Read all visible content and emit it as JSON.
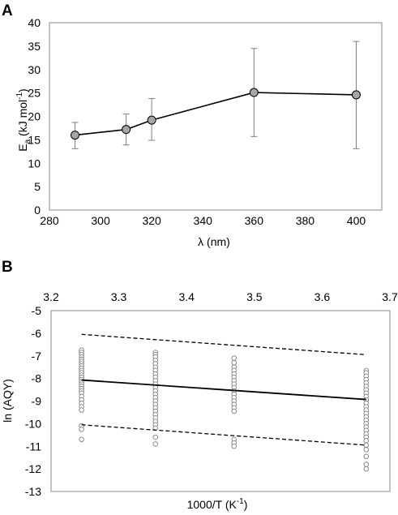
{
  "chart_data": [
    {
      "panel": "A",
      "type": "line",
      "x": [
        290,
        310,
        320,
        360,
        400
      ],
      "y": [
        16.0,
        17.2,
        19.2,
        25.1,
        24.6
      ],
      "y_err_upper": [
        18.7,
        20.5,
        23.8,
        34.5,
        36.0
      ],
      "y_err_lower": [
        13.1,
        13.9,
        14.9,
        15.7,
        13.1
      ],
      "xlabel": "λ  (nm)",
      "ylabel": {
        "main": "E",
        "sub": "a",
        "rest": " (kJ mol",
        "sup": "-1",
        "close": ")"
      },
      "xlim": [
        280,
        410
      ],
      "ylim": [
        0,
        40
      ],
      "xticks": [
        280,
        300,
        320,
        340,
        360,
        380,
        400
      ],
      "yticks": [
        0,
        5,
        10,
        15,
        20,
        25,
        30,
        35,
        40
      ],
      "grid": false,
      "marker_color": "#a6a6a6",
      "line_color": "#000000",
      "error_color": "#7f7f7f"
    },
    {
      "panel": "B",
      "type": "scatter",
      "x_groups": [
        3.245,
        3.354,
        3.47,
        3.665
      ],
      "y_groups": [
        [
          -6.75,
          -6.85,
          -6.95,
          -7.05,
          -7.15,
          -7.25,
          -7.35,
          -7.45,
          -7.55,
          -7.65,
          -7.75,
          -7.85,
          -7.95,
          -8.05,
          -8.15,
          -8.25,
          -8.35,
          -8.45,
          -8.55,
          -8.65,
          -8.8,
          -8.95,
          -9.1,
          -9.25,
          -9.4,
          -10.1,
          -10.25,
          -10.7
        ],
        [
          -6.85,
          -6.95,
          -7.05,
          -7.2,
          -7.35,
          -7.5,
          -7.65,
          -7.8,
          -7.95,
          -8.1,
          -8.25,
          -8.4,
          -8.55,
          -8.7,
          -8.85,
          -9.0,
          -9.15,
          -9.3,
          -9.45,
          -9.6,
          -9.75,
          -9.9,
          -10.05,
          -10.2,
          -10.6,
          -10.9
        ],
        [
          -7.1,
          -7.3,
          -7.5,
          -7.65,
          -7.8,
          -7.95,
          -8.1,
          -8.25,
          -8.4,
          -8.55,
          -8.7,
          -8.85,
          -9.0,
          -9.15,
          -9.3,
          -9.45,
          -10.7,
          -10.85,
          -11.0
        ],
        [
          -7.65,
          -7.75,
          -7.9,
          -8.05,
          -8.2,
          -8.35,
          -8.5,
          -8.65,
          -8.8,
          -8.95,
          -9.1,
          -9.25,
          -9.4,
          -9.55,
          -9.7,
          -9.85,
          -10.0,
          -10.15,
          -10.3,
          -10.45,
          -10.6,
          -10.75,
          -10.95,
          -11.15,
          -11.45,
          -11.8,
          -12.0
        ]
      ],
      "fit_line": {
        "x": [
          3.245,
          3.665
        ],
        "y": [
          -8.07,
          -8.93
        ]
      },
      "upper_band": {
        "x": [
          3.245,
          3.665
        ],
        "y": [
          -6.05,
          -6.95
        ]
      },
      "lower_band": {
        "x": [
          3.245,
          3.665
        ],
        "y": [
          -10.05,
          -10.95
        ]
      },
      "xlabel": "1000/T (K-1)",
      "xlabel_parts": {
        "main": "1000/T (K",
        "sup": "-1",
        "close": ")"
      },
      "ylabel": "ln (AQY)",
      "xlim": [
        3.2,
        3.7
      ],
      "ylim": [
        -13,
        -5
      ],
      "xticks": [
        3.2,
        3.3,
        3.4,
        3.5,
        3.6,
        3.7
      ],
      "yticks": [
        -5,
        -6,
        -7,
        -8,
        -9,
        -10,
        -11,
        -12,
        -13
      ],
      "x_axis_position": "top",
      "grid": false,
      "marker_color": "#7f7f7f"
    }
  ],
  "labels": {
    "panel_a": "A",
    "panel_b": "B"
  }
}
